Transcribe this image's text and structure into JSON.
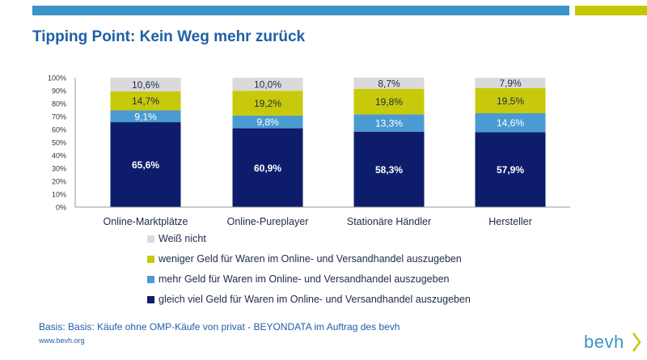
{
  "header": {
    "title": "Tipping Point: Kein Weg mehr zurück"
  },
  "colors": {
    "topbar_blue": "#3a93c9",
    "topbar_yellow": "#c4c800",
    "title": "#1f5fa6"
  },
  "chart_data": {
    "type": "bar",
    "stacked": true,
    "title": "",
    "xlabel": "",
    "ylabel": "",
    "ylim": [
      0,
      100
    ],
    "yticks": [
      "0%",
      "10%",
      "20%",
      "30%",
      "40%",
      "50%",
      "60%",
      "70%",
      "80%",
      "90%",
      "100%"
    ],
    "grid": false,
    "legend_position": "bottom",
    "categories": [
      "Online-Marktplätze",
      "Online-Pureplayer",
      "Stationäre Händler",
      "Hersteller"
    ],
    "series": [
      {
        "name": "gleich viel Geld für Waren im Online- und Versandhandel auszugeben",
        "color": "#0d1d6b",
        "label_color": "#ffffff",
        "values": [
          65.6,
          60.9,
          58.3,
          57.9
        ],
        "labels": [
          "65,6%",
          "60,9%",
          "58,3%",
          "57,9%"
        ]
      },
      {
        "name": "mehr Geld für Waren im Online- und Versandhandel auszugeben",
        "color": "#4a9bd1",
        "label_color": "#ffffff",
        "values": [
          9.1,
          9.8,
          13.3,
          14.6
        ],
        "labels": [
          "9,1%",
          "9,8%",
          "13,3%",
          "14,6%"
        ]
      },
      {
        "name": "weniger Geld für Waren im Online- und Versandhandel auszugeben",
        "color": "#c8c90b",
        "label_color": "#1e2a4a",
        "values": [
          14.7,
          19.2,
          19.8,
          19.5
        ],
        "labels": [
          "14,7%",
          "19,2%",
          "19,8%",
          "19,5%"
        ]
      },
      {
        "name": "Weiß nicht",
        "color": "#dadada",
        "label_color": "#1e2a4a",
        "values": [
          10.6,
          10.0,
          8.7,
          7.9
        ],
        "labels": [
          "10,6%",
          "10,0%",
          "8,7%",
          "7,9%"
        ]
      }
    ],
    "legend_order": [
      "Weiß nicht",
      "weniger Geld für Waren im Online- und Versandhandel auszugeben",
      "mehr Geld für Waren im Online- und Versandhandel auszugeben",
      "gleich viel Geld für Waren im Online- und Versandhandel auszugeben"
    ]
  },
  "footer": {
    "basis": "Basis: Basis: Käufe ohne OMP-Käufe von privat - BEYONDATA im Auftrag des bevh",
    "source": "www.bevh.org",
    "logo_text": "bevh"
  }
}
